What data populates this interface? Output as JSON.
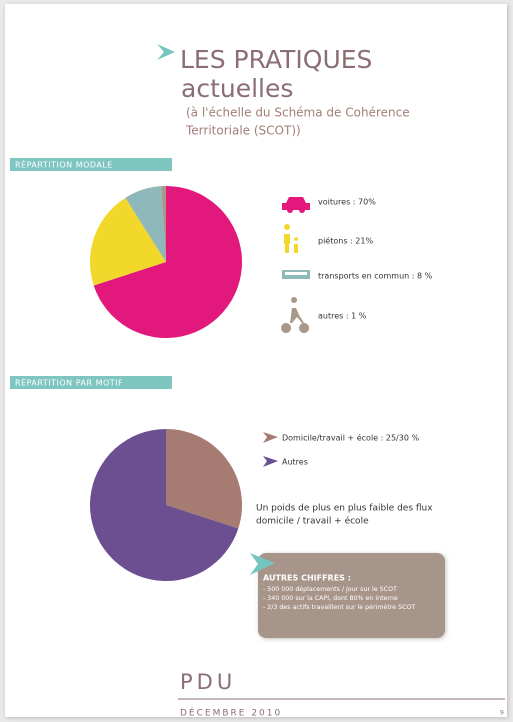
{
  "header": {
    "title": "LES PRATIQUES",
    "title_line2": "actuelles",
    "subtitle_lines": [
      "(à l'échelle du Schéma de Cohérence",
      "Territoriale (SCOT))"
    ]
  },
  "chart_data": [
    {
      "type": "pie",
      "title": "RÉPARTITION MODALE",
      "labels": [
        "voitures : 70%",
        "piétons : 21%",
        "transports en commun : 8 %",
        "autres : 1 %"
      ],
      "values": [
        70,
        21,
        8,
        1
      ],
      "colors": [
        "#e3187c",
        "#f1d82b",
        "#8fb8bb",
        "#a8988a"
      ]
    },
    {
      "type": "pie",
      "title": "RÉPARTITION PAR MOTIF",
      "labels": [
        "Domicile/travail + école  :  25/30 %",
        "Autres"
      ],
      "values": [
        30,
        70
      ],
      "colors": [
        "#a67b72",
        "#6b4f90"
      ]
    }
  ],
  "note_lines": [
    "Un poids de plus en plus faible des flux",
    "domicile / travail + école"
  ],
  "callout": {
    "title": "AUTRES CHIFFRES :",
    "lines": [
      "- 500 000 déplacements / jour sur le SCOT",
      "- 340 000 sur la CAPI, dont 80% en interne",
      "- 2/3 des actifs travaillent sur le périmètre SCOT"
    ]
  },
  "footer": {
    "brand": "PDU",
    "date": "DÉCEMBRE 2010",
    "page": "9"
  }
}
